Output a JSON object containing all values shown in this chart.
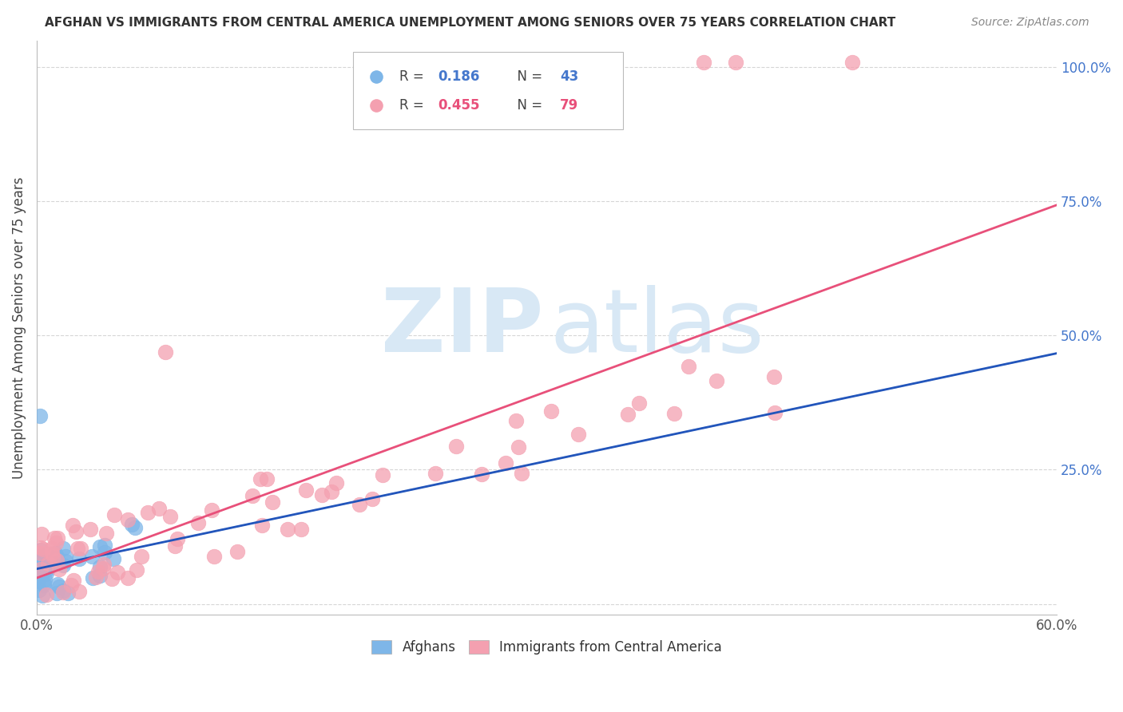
{
  "title": "AFGHAN VS IMMIGRANTS FROM CENTRAL AMERICA UNEMPLOYMENT AMONG SENIORS OVER 75 YEARS CORRELATION CHART",
  "source": "Source: ZipAtlas.com",
  "ylabel": "Unemployment Among Seniors over 75 years",
  "xlim": [
    0.0,
    0.6
  ],
  "ylim": [
    -0.02,
    1.05
  ],
  "ytick_positions": [
    0.0,
    0.25,
    0.5,
    0.75,
    1.0
  ],
  "ytick_labels": [
    "",
    "25.0%",
    "50.0%",
    "75.0%",
    "100.0%"
  ],
  "xtick_positions": [
    0.0,
    0.06,
    0.12,
    0.18,
    0.24,
    0.3,
    0.36,
    0.42,
    0.48,
    0.54,
    0.6
  ],
  "xtick_labels": [
    "0.0%",
    "",
    "",
    "",
    "",
    "",
    "",
    "",
    "",
    "",
    "60.0%"
  ],
  "legend_r_afghan": "0.186",
  "legend_n_afghan": "43",
  "legend_r_ca": "0.455",
  "legend_n_ca": "79",
  "afghan_color": "#7EB6E8",
  "ca_color": "#F4A0B0",
  "afghan_line_color": "#2255BB",
  "ca_line_color": "#E8507A",
  "afghan_dashed_color": "#AACCEE",
  "legend_label_afghan": "Afghans",
  "legend_label_ca": "Immigrants from Central America",
  "r_color_blue": "#4477CC",
  "r_color_pink": "#E8507A",
  "n_color_blue": "#4477CC",
  "n_color_pink": "#E8507A",
  "watermark_color": "#D8E8F5",
  "grid_color": "#CCCCCC",
  "title_color": "#333333",
  "source_color": "#888888",
  "ylabel_color": "#444444",
  "tick_label_color_x": "#555555",
  "tick_label_color_y": "#4477CC"
}
